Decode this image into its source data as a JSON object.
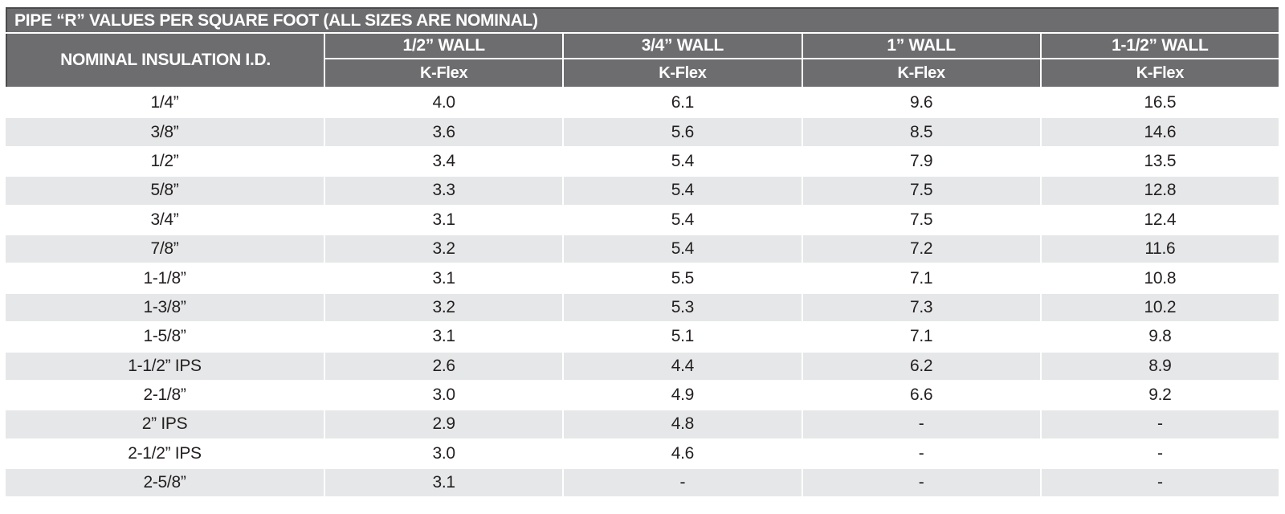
{
  "table": {
    "title": "PIPE “R” VALUES PER SQUARE FOOT (ALL SIZES ARE NOMINAL)",
    "id_column_header": "NOMINAL INSULATION I.D.",
    "wall_columns": [
      {
        "label": "1/2” WALL",
        "sub": "K-Flex"
      },
      {
        "label": "3/4” WALL",
        "sub": "K-Flex"
      },
      {
        "label": "1” WALL",
        "sub": "K-Flex"
      },
      {
        "label": "1-1/2” WALL",
        "sub": "K-Flex"
      }
    ],
    "rows": [
      {
        "id": "1/4”",
        "values": [
          "4.0",
          "6.1",
          "9.6",
          "16.5"
        ]
      },
      {
        "id": "3/8”",
        "values": [
          "3.6",
          "5.6",
          "8.5",
          "14.6"
        ]
      },
      {
        "id": "1/2”",
        "values": [
          "3.4",
          "5.4",
          "7.9",
          "13.5"
        ]
      },
      {
        "id": "5/8”",
        "values": [
          "3.3",
          "5.4",
          "7.5",
          "12.8"
        ]
      },
      {
        "id": "3/4”",
        "values": [
          "3.1",
          "5.4",
          "7.5",
          "12.4"
        ]
      },
      {
        "id": "7/8”",
        "values": [
          "3.2",
          "5.4",
          "7.2",
          "11.6"
        ]
      },
      {
        "id": "1-1/8”",
        "values": [
          "3.1",
          "5.5",
          "7.1",
          "10.8"
        ]
      },
      {
        "id": "1-3/8”",
        "values": [
          "3.2",
          "5.3",
          "7.3",
          "10.2"
        ]
      },
      {
        "id": "1-5/8”",
        "values": [
          "3.1",
          "5.1",
          "7.1",
          "9.8"
        ]
      },
      {
        "id": "1-1/2” IPS",
        "values": [
          "2.6",
          "4.4",
          "6.2",
          "8.9"
        ]
      },
      {
        "id": "2-1/8”",
        "values": [
          "3.0",
          "4.9",
          "6.6",
          "9.2"
        ]
      },
      {
        "id": "2” IPS",
        "values": [
          "2.9",
          "4.8",
          "-",
          "-"
        ]
      },
      {
        "id": "2-1/2” IPS",
        "values": [
          "3.0",
          "4.6",
          "-",
          "-"
        ]
      },
      {
        "id": "2-5/8”",
        "values": [
          "3.1",
          "-",
          "-",
          "-"
        ]
      }
    ]
  },
  "colors": {
    "header_bg": "#6d6d70",
    "header_text": "#ffffff",
    "row_alt_bg": "#e6e7e8",
    "text": "#231f20",
    "border_dark": "#4a4a4c"
  }
}
